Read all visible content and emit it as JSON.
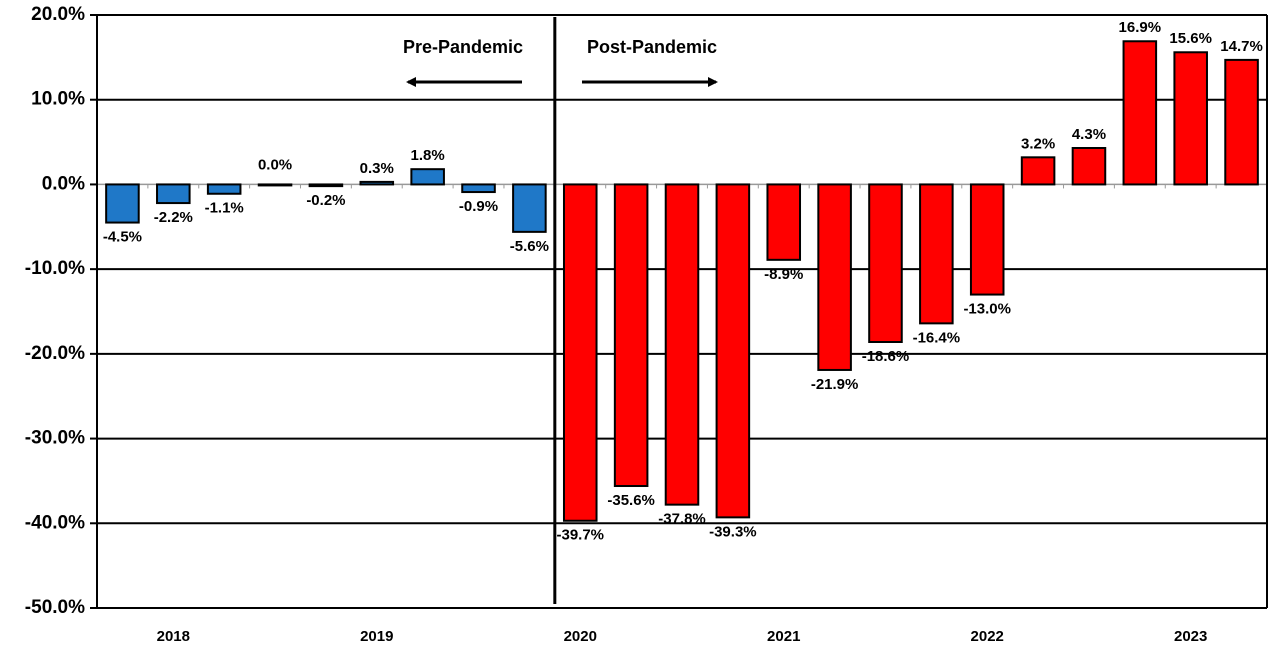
{
  "chart_data": {
    "type": "bar",
    "categories": [
      null,
      "2018",
      null,
      null,
      null,
      "2019",
      null,
      null,
      null,
      "2020",
      null,
      null,
      null,
      "2021",
      null,
      null,
      null,
      "2022",
      null,
      null,
      null,
      "2023",
      null
    ],
    "values": [
      -4.5,
      -2.2,
      -1.1,
      0.0,
      -0.2,
      0.3,
      1.8,
      -0.9,
      -5.6,
      -39.7,
      -35.6,
      -37.8,
      -39.3,
      -8.9,
      -21.9,
      -18.6,
      -16.4,
      -13.0,
      3.2,
      4.3,
      16.9,
      15.6,
      14.7
    ],
    "value_labels": [
      "-4.5%",
      "-2.2%",
      "-1.1%",
      "0.0%",
      "-0.2%",
      "0.3%",
      "1.8%",
      "-0.9%",
      "-5.6%",
      "-39.7%",
      "-35.6%",
      "-37.8%",
      "-39.3%",
      "-8.9%",
      "-21.9%",
      "-18.6%",
      "-16.4%",
      "-13.0%",
      "3.2%",
      "4.3%",
      "16.9%",
      "15.6%",
      "14.7%"
    ],
    "colors": [
      "#1f78c8",
      "#1f78c8",
      "#1f78c8",
      "#1f78c8",
      "#1f78c8",
      "#1f78c8",
      "#1f78c8",
      "#1f78c8",
      "#1f78c8",
      "#ff0000",
      "#ff0000",
      "#ff0000",
      "#ff0000",
      "#ff0000",
      "#ff0000",
      "#ff0000",
      "#ff0000",
      "#ff0000",
      "#ff0000",
      "#ff0000",
      "#ff0000",
      "#ff0000",
      "#ff0000"
    ],
    "ylim": [
      -50,
      20
    ],
    "yticks": [
      {
        "value": -50,
        "label": "-50.0%"
      },
      {
        "value": -40,
        "label": "-40.0%"
      },
      {
        "value": -30,
        "label": "-30.0%"
      },
      {
        "value": -20,
        "label": "-20.0%"
      },
      {
        "value": -10,
        "label": "-10.0%"
      },
      {
        "value": 0,
        "label": "0.0%"
      },
      {
        "value": 10,
        "label": "10.0%"
      },
      {
        "value": 20,
        "label": "20.0%"
      }
    ],
    "grid": true,
    "annotations": [
      "Pre-Pandemic",
      "Post-Pandemic"
    ]
  }
}
